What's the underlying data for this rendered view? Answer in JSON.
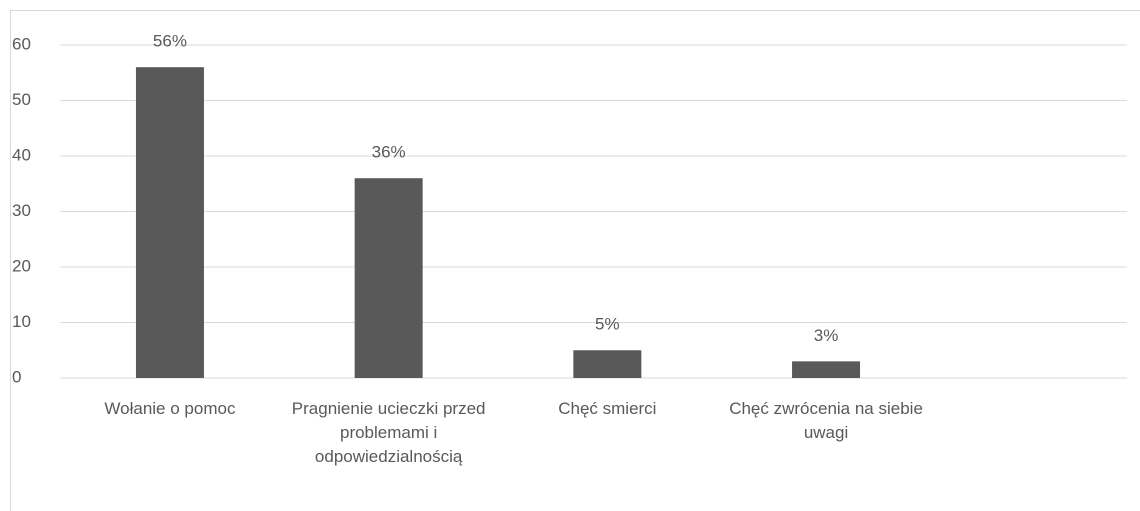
{
  "chart_data": {
    "type": "bar",
    "categories": [
      "Wołanie o pomoc",
      "Pragnienie ucieczki przed problemami i odpowiedzialnością",
      "Chęć smierci",
      "Chęć zwrócenia na siebie uwagi",
      null
    ],
    "values": [
      56,
      36,
      5,
      3,
      null
    ],
    "value_labels": [
      "56%",
      "36%",
      "5%",
      "3%",
      null
    ],
    "color": "#595959",
    "ylim": [
      0,
      60
    ],
    "yticks": [
      0,
      10,
      20,
      30,
      40,
      50,
      60
    ],
    "grid": true
  }
}
